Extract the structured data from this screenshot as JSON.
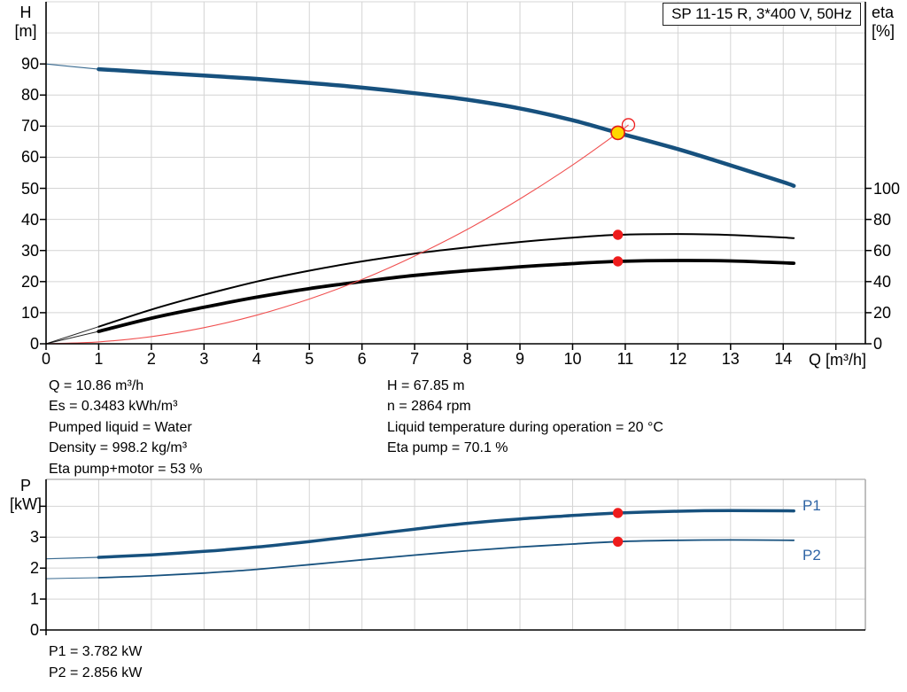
{
  "title_box": "SP 11-15 R, 3*400 V, 50Hz",
  "axes_labels": {
    "top_left": [
      "H",
      "[m]"
    ],
    "top_right": [
      "eta",
      "[%]"
    ],
    "x": "Q [m³/h]",
    "bottom_left": [
      "P",
      "[kW]"
    ]
  },
  "curve_labels": {
    "p1": "P1",
    "p2": "P2"
  },
  "info_left": [
    "Q = 10.86 m³/h",
    "Es = 0.3483 kWh/m³",
    "Pumped liquid = Water",
    "Density = 998.2 kg/m³",
    "Eta pump+motor = 53 %"
  ],
  "info_right": [
    "H = 67.85 m",
    "n = 2864 rpm",
    "Liquid temperature during operation = 20 °C",
    "Eta pump = 70.1 %"
  ],
  "info_bottom": [
    "P1 = 3.782 kW",
    "P2 = 2.856 kW"
  ],
  "colors": {
    "curve_blue": "#17517e",
    "eta_black": "#000000",
    "system_red": "#f05050",
    "marker_red": "#ee1c1c",
    "duty_yellow": "#ffd700",
    "label_blue": "#2e64a5",
    "grid": "#d4d4d4",
    "frame_gray": "#aaaaaa",
    "axis": "#000000"
  },
  "chart_data": [
    {
      "type": "line",
      "name": "performance-curves",
      "x_axis": {
        "label": "Q [m³/h]",
        "min": 0,
        "max": 15.56,
        "ticks_labeled": [
          0,
          1,
          2,
          3,
          4,
          5,
          6,
          7,
          8,
          9,
          10,
          11,
          12,
          13,
          14
        ],
        "ticks_unlabeled": [
          15
        ],
        "grid": true
      },
      "y_left_axis": {
        "label": "H [m]",
        "min": 0,
        "max": 110,
        "ticks": [
          0,
          10,
          20,
          30,
          40,
          50,
          60,
          70,
          80,
          90
        ],
        "grid_step": 10,
        "grid": true
      },
      "y_right_axis": {
        "label": "eta [%]",
        "ticks": [
          0,
          20,
          40,
          60,
          80,
          100
        ],
        "unit_in_left": 0.5
      },
      "series": [
        {
          "name": "h-q-curve",
          "axis": "left",
          "color": "#17517e",
          "width": [
            1.1,
            4.5
          ],
          "x": [
            0,
            1,
            2,
            3,
            4,
            5,
            6,
            7,
            8,
            9,
            10,
            10.86,
            12,
            13,
            14,
            14.2
          ],
          "y": [
            90,
            88.3,
            87.3,
            86.3,
            85.2,
            83.9,
            82.4,
            80.6,
            78.5,
            75.7,
            71.9,
            67.85,
            62.6,
            57.4,
            52.0,
            50.8
          ]
        },
        {
          "name": "eta-pump-curve",
          "axis": "right",
          "color": "#000000",
          "width": [
            1.0,
            2.0
          ],
          "x": [
            0,
            1,
            2,
            3,
            4,
            5,
            6,
            7,
            8,
            9,
            10,
            10.86,
            12,
            13,
            14.2
          ],
          "y": [
            0,
            11,
            22,
            31.5,
            40,
            47,
            53,
            58,
            62,
            65.5,
            68.3,
            70.1,
            70.6,
            70.0,
            68.0
          ]
        },
        {
          "name": "eta-pump-motor-curve",
          "axis": "right",
          "color": "#000000",
          "width": [
            1.0,
            3.8
          ],
          "x": [
            0,
            1,
            2,
            3,
            4,
            5,
            6,
            7,
            8,
            9,
            10,
            10.86,
            12,
            13,
            14.2
          ],
          "y": [
            0,
            8,
            16.5,
            23.5,
            30,
            35.5,
            40,
            44,
            47,
            49.5,
            51.6,
            53,
            53.6,
            53.3,
            51.8
          ]
        },
        {
          "name": "system-curve",
          "axis": "left",
          "color": "#f05050",
          "width": [
            1.1,
            1.1
          ],
          "x": [
            0,
            1,
            2,
            3,
            4,
            5,
            6,
            7,
            8,
            9,
            10,
            10.86,
            11.06
          ],
          "y": [
            0,
            0.6,
            2.3,
            5.2,
            9.2,
            14.4,
            20.7,
            28.2,
            36.8,
            46.6,
            57.5,
            67.85,
            70.4
          ]
        }
      ],
      "markers": [
        {
          "name": "duty-point-reference",
          "shape": "circle-outline",
          "q": 11.06,
          "value": 70.4,
          "axis": "left",
          "stroke": "#ee1c1c",
          "r": 7
        },
        {
          "name": "operating-point",
          "shape": "dot",
          "q": 10.86,
          "value": 67.85,
          "axis": "left",
          "fill": "#ffd700",
          "stroke": "#e01818",
          "r": 7.5
        },
        {
          "name": "eta-pump-point",
          "shape": "dot",
          "q": 10.86,
          "value": 70.1,
          "axis": "right",
          "fill": "#ee1c1c",
          "r": 5.7
        },
        {
          "name": "eta-pump-motor-point",
          "shape": "dot",
          "q": 10.86,
          "value": 53,
          "axis": "right",
          "fill": "#ee1c1c",
          "r": 5.7
        }
      ]
    },
    {
      "type": "line",
      "name": "power-curves",
      "x_axis": {
        "min": 0,
        "max": 15.56,
        "grid": true
      },
      "y_axis": {
        "label": "P [kW]",
        "min": 0,
        "max": 4.87,
        "ticks_labeled": [
          0,
          1,
          2,
          3
        ],
        "ticks_unlabeled": [
          4
        ],
        "grid": true
      },
      "series": [
        {
          "name": "p1-curve",
          "color": "#17517e",
          "width": [
            1.2,
            3.5
          ],
          "x": [
            0,
            1,
            2,
            3,
            4,
            5,
            6,
            7,
            8,
            9,
            10,
            10.86,
            12,
            13,
            14.2
          ],
          "y": [
            2.3,
            2.35,
            2.43,
            2.54,
            2.68,
            2.86,
            3.06,
            3.26,
            3.45,
            3.59,
            3.7,
            3.782,
            3.84,
            3.86,
            3.85
          ]
        },
        {
          "name": "p2-curve",
          "color": "#17517e",
          "width": [
            1.0,
            1.8
          ],
          "x": [
            0,
            1,
            2,
            3,
            4,
            5,
            6,
            7,
            8,
            9,
            10,
            10.86,
            12,
            13,
            14.2
          ],
          "y": [
            1.66,
            1.69,
            1.75,
            1.84,
            1.96,
            2.11,
            2.27,
            2.42,
            2.56,
            2.68,
            2.78,
            2.856,
            2.9,
            2.91,
            2.9
          ]
        }
      ],
      "markers": [
        {
          "name": "p1-point",
          "shape": "dot",
          "q": 10.86,
          "value": 3.782,
          "fill": "#ee1c1c",
          "r": 5.7
        },
        {
          "name": "p2-point",
          "shape": "dot",
          "q": 10.86,
          "value": 2.856,
          "fill": "#ee1c1c",
          "r": 5.7
        }
      ]
    }
  ]
}
